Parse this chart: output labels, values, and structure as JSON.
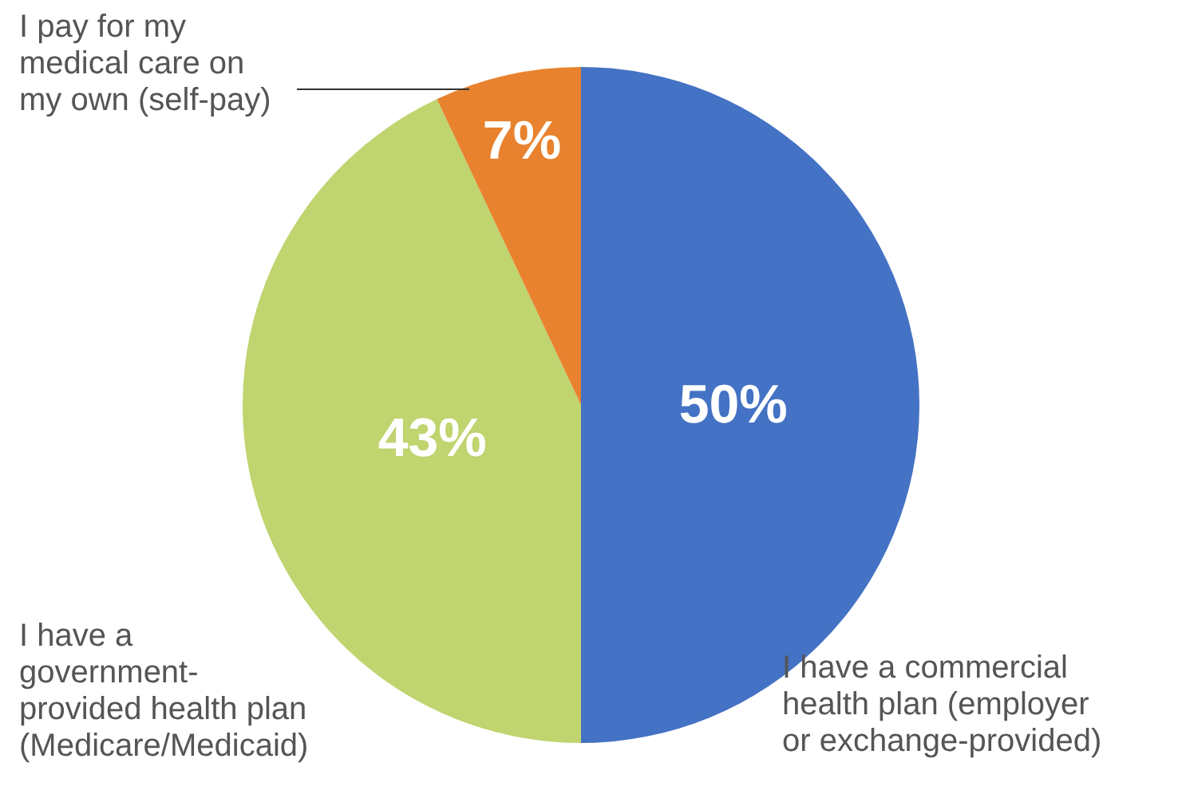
{
  "chart_data": {
    "type": "pie",
    "categories": [
      "I have a commercial\nhealth plan (employer\nor exchange-provided)",
      "I have a\ngovernment-\nprovided health plan\n(Medicare/Medicaid)",
      "I pay for my\nmedical care on\nmy own (self-pay)"
    ],
    "values": [
      50,
      43,
      7
    ],
    "colors": [
      "#4472c4",
      "#c0d46f",
      "#e8822e"
    ],
    "value_labels": [
      "50%",
      "43%",
      "7%"
    ],
    "legend": false
  }
}
